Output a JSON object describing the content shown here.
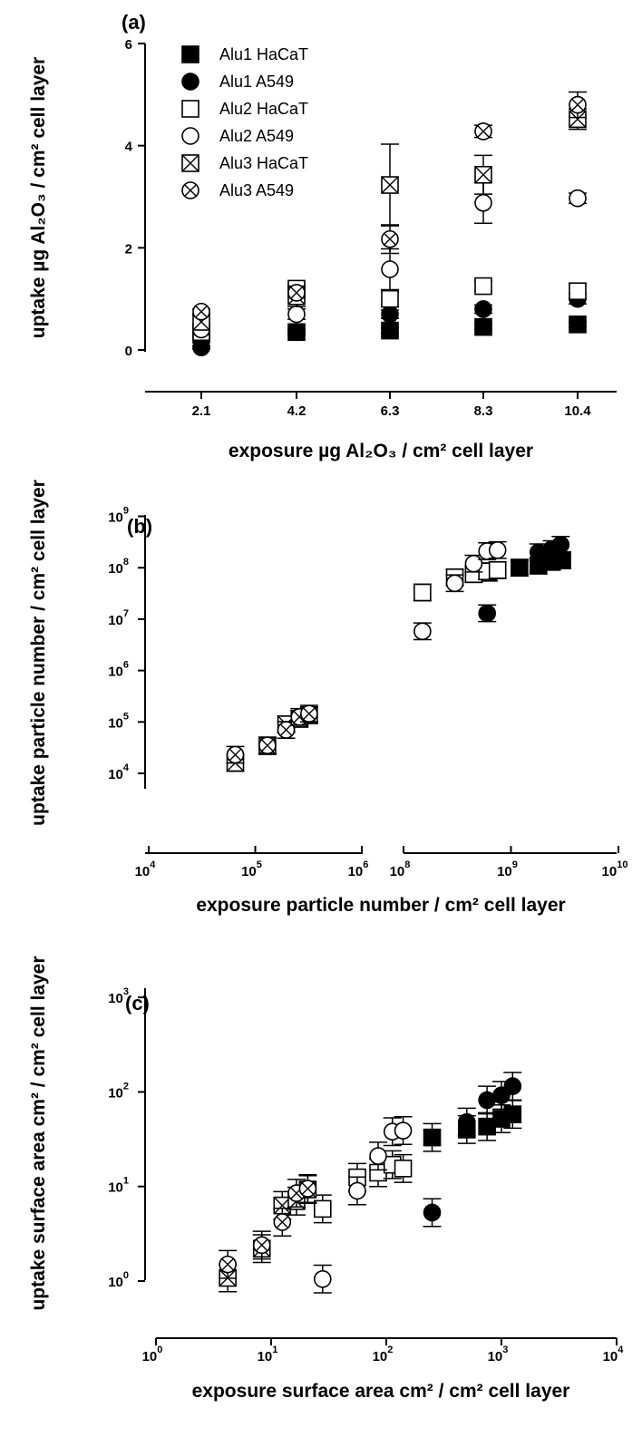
{
  "legend": [
    {
      "label": "Alu1 HaCaT",
      "marker": "square-filled"
    },
    {
      "label": "Alu1 A549",
      "marker": "circle-filled"
    },
    {
      "label": "Alu2 HaCaT",
      "marker": "square-open"
    },
    {
      "label": "Alu2 A549",
      "marker": "circle-open"
    },
    {
      "label": "Alu3 HaCaT",
      "marker": "square-x"
    },
    {
      "label": "Alu3 A549",
      "marker": "circle-x"
    }
  ],
  "chart_data": [
    {
      "panel": "(a)",
      "type": "scatter",
      "title": "(a)",
      "xlabel": "exposure µg Al₂O₃ / cm² cell layer",
      "ylabel": "uptake µg Al₂O₃ / cm² cell layer",
      "categories": [
        "2.1",
        "4.2",
        "6.3",
        "8.3",
        "10.4"
      ],
      "ylim": [
        0,
        6
      ],
      "yticks": [
        "0",
        "2",
        "4",
        "6"
      ],
      "legend_position": "top-left",
      "series": [
        {
          "name": "Alu1 HaCaT",
          "marker": "square-filled",
          "values": [
            0.3,
            0.35,
            0.38,
            0.45,
            0.5
          ],
          "err": [
            0.05,
            0.05,
            0.05,
            0.05,
            0.05
          ]
        },
        {
          "name": "Alu1 A549",
          "marker": "circle-filled",
          "values": [
            0.05,
            0.35,
            0.7,
            0.8,
            1.0
          ],
          "err": [
            0.03,
            0.05,
            0.08,
            0.08,
            0.1
          ]
        },
        {
          "name": "Alu2 HaCaT",
          "marker": "square-open",
          "values": [
            0.35,
            1.2,
            1.0,
            1.25,
            1.15
          ],
          "err": [
            0.1,
            0.1,
            0.15,
            0.1,
            0.15
          ]
        },
        {
          "name": "Alu2 A549",
          "marker": "circle-open",
          "values": [
            0.4,
            0.7,
            1.58,
            2.88,
            2.97
          ],
          "err": [
            0.1,
            0.1,
            0.4,
            0.4,
            0.1
          ]
        },
        {
          "name": "Alu3 HaCaT",
          "marker": "square-x",
          "values": [
            0.55,
            1.05,
            3.23,
            3.43,
            4.52
          ],
          "err": [
            0.15,
            0.2,
            0.8,
            0.38,
            0.2
          ]
        },
        {
          "name": "Alu3 A549",
          "marker": "circle-x",
          "values": [
            0.75,
            1.12,
            2.17,
            4.28,
            4.8
          ],
          "err": [
            0.05,
            0.1,
            0.28,
            0.12,
            0.25
          ]
        }
      ]
    },
    {
      "panel": "(b)",
      "type": "scatter",
      "title": "(b)",
      "xlabel": "exposure particle number / cm² cell layer",
      "ylabel": "uptake particle number / cm² cell layer",
      "xscale": "log",
      "yscale": "log",
      "x_break": [
        1000000.0,
        100000000.0
      ],
      "xlim_left": [
        10000.0,
        1000000.0
      ],
      "xlim_right": [
        100000000.0,
        10000000000.0
      ],
      "ylim": [
        10000.0,
        1000000000.0
      ],
      "xtick_labels": [
        "10^4",
        "10^5",
        "10^6",
        "10^8",
        "10^9",
        "10^10"
      ],
      "ytick_labels": [
        "10^4",
        "10^5",
        "10^6",
        "10^7",
        "10^8",
        "10^9"
      ],
      "series": [
        {
          "name": "Alu1 HaCaT",
          "marker": "square-filled",
          "points": [
            [
              620000000.0,
              80000000.0
            ],
            [
              1200000000.0,
              100000000.0
            ],
            [
              1800000000.0,
              110000000.0
            ],
            [
              2400000000.0,
              130000000.0
            ],
            [
              3000000000.0,
              140000000.0
            ]
          ]
        },
        {
          "name": "Alu1 A549",
          "marker": "circle-filled",
          "points": [
            [
              600000000.0,
              13000000.0
            ],
            [
              1800000000.0,
              200000000.0
            ],
            [
              2400000000.0,
              230000000.0
            ],
            [
              2900000000.0,
              280000000.0
            ]
          ]
        },
        {
          "name": "Alu2 HaCaT",
          "marker": "square-open",
          "points": [
            [
              150000000.0,
              33000000.0
            ],
            [
              300000000.0,
              65000000.0
            ],
            [
              450000000.0,
              75000000.0
            ],
            [
              600000000.0,
              85000000.0
            ],
            [
              750000000.0,
              90000000.0
            ]
          ]
        },
        {
          "name": "Alu2 A549",
          "marker": "circle-open",
          "points": [
            [
              150000000.0,
              5800000.0
            ],
            [
              300000000.0,
              50000000.0
            ],
            [
              450000000.0,
              120000000.0
            ],
            [
              600000000.0,
              210000000.0
            ],
            [
              750000000.0,
              220000000.0
            ]
          ]
        },
        {
          "name": "Alu3 HaCaT",
          "marker": "square-x",
          "points": [
            [
              65000.0,
              16000.0
            ],
            [
              130000.0,
              34000.0
            ],
            [
              195000.0,
              90000.0
            ],
            [
              260000.0,
              115000.0
            ],
            [
              320000.0,
              135000.0
            ]
          ]
        },
        {
          "name": "Alu3 A549",
          "marker": "circle-x",
          "points": [
            [
              65000.0,
              23000.0
            ],
            [
              130000.0,
              35000.0
            ],
            [
              195000.0,
              70000.0
            ],
            [
              260000.0,
              125000.0
            ],
            [
              320000.0,
              145000.0
            ]
          ]
        }
      ]
    },
    {
      "panel": "(c)",
      "type": "scatter",
      "title": "(c)",
      "xlabel": "exposure surface area cm² / cm² cell layer",
      "ylabel": "uptake surface area cm² / cm² cell layer",
      "xscale": "log",
      "yscale": "log",
      "xlim": [
        1,
        10000.0
      ],
      "ylim": [
        1,
        1000.0
      ],
      "xtick_labels": [
        "10^0",
        "10^1",
        "10^2",
        "10^3",
        "10^4"
      ],
      "ytick_labels": [
        "10^0",
        "10^1",
        "10^2",
        "10^3"
      ],
      "series": [
        {
          "name": "Alu1 HaCaT",
          "marker": "square-filled",
          "points": [
            [
              250,
              33
            ],
            [
              500,
              40
            ],
            [
              750,
              43
            ],
            [
              1000,
              52
            ],
            [
              1250,
              58
            ]
          ]
        },
        {
          "name": "Alu1 A549",
          "marker": "circle-filled",
          "points": [
            [
              250,
              5.3
            ],
            [
              500,
              48
            ],
            [
              750,
              82
            ],
            [
              1000,
              92
            ],
            [
              1250,
              115
            ]
          ]
        },
        {
          "name": "Alu2 HaCaT",
          "marker": "square-open",
          "points": [
            [
              28,
              5.8
            ],
            [
              56,
              12.5
            ],
            [
              85,
              14
            ],
            [
              113,
              17
            ],
            [
              140,
              15.5
            ]
          ]
        },
        {
          "name": "Alu2 A549",
          "marker": "circle-open",
          "points": [
            [
              28,
              1.05
            ],
            [
              56,
              9
            ],
            [
              85,
              21
            ],
            [
              113,
              38
            ],
            [
              140,
              39
            ]
          ]
        },
        {
          "name": "Alu3 HaCaT",
          "marker": "square-x",
          "points": [
            [
              4.2,
              1.08
            ],
            [
              8.3,
              2.2
            ],
            [
              12.5,
              6.3
            ],
            [
              16.6,
              7
            ],
            [
              20.8,
              9.3
            ]
          ]
        },
        {
          "name": "Alu3 A549",
          "marker": "circle-x",
          "points": [
            [
              4.2,
              1.5
            ],
            [
              8.3,
              2.4
            ],
            [
              12.5,
              4.2
            ],
            [
              16.6,
              8.5
            ],
            [
              20.8,
              9.5
            ]
          ]
        }
      ]
    }
  ]
}
